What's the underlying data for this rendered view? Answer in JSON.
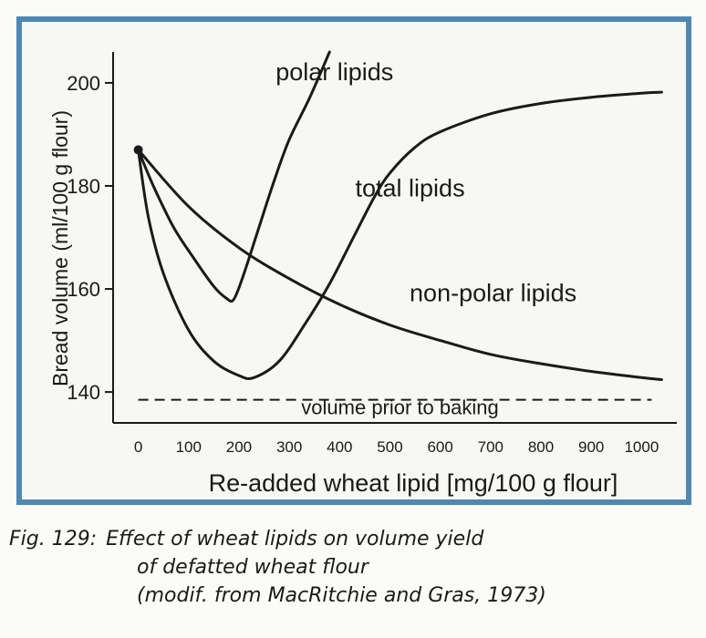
{
  "chart_data": {
    "type": "line",
    "xlabel": "Re-added wheat lipid [mg/100 g flour]",
    "ylabel": "Bread volume (ml/100 g flour)",
    "xlim": [
      -50,
      1070
    ],
    "ylim": [
      134,
      206
    ],
    "xticks": [
      0,
      100,
      200,
      300,
      400,
      500,
      600,
      700,
      800,
      900,
      1000
    ],
    "yticks": [
      140,
      160,
      180,
      200
    ],
    "grid": false,
    "series": [
      {
        "name": "polar lipids",
        "x": [
          0,
          30,
          70,
          110,
          150,
          175,
          190,
          210,
          240,
          270,
          300,
          340,
          380
        ],
        "y": [
          187,
          180,
          172,
          166,
          160.5,
          158.2,
          158,
          163,
          172,
          181,
          189,
          197,
          206
        ]
      },
      {
        "name": "total lipids",
        "x": [
          0,
          20,
          50,
          100,
          150,
          200,
          230,
          280,
          330,
          380,
          430,
          470,
          500,
          550,
          600,
          700,
          800,
          900,
          1000,
          1040
        ],
        "y": [
          187,
          174,
          163,
          152,
          146,
          143.2,
          142.8,
          146,
          153,
          161,
          170.5,
          178,
          182.5,
          187.5,
          190.5,
          194,
          196,
          197.2,
          198,
          198.2
        ]
      },
      {
        "name": "non-polar lipids",
        "x": [
          0,
          100,
          200,
          300,
          400,
          500,
          600,
          700,
          800,
          900,
          1000,
          1040
        ],
        "y": [
          187,
          176,
          168,
          162,
          157,
          153,
          150,
          147.3,
          145.5,
          144,
          142.8,
          142.4
        ]
      },
      {
        "name": "volume prior to baking",
        "x": [
          0,
          1020
        ],
        "y": [
          138.5,
          138.5
        ],
        "dashed": true
      }
    ],
    "annotations": [
      {
        "text": "polar lipids",
        "x": 390,
        "y": 200.5
      },
      {
        "text": "total lipids",
        "x": 540,
        "y": 178
      },
      {
        "text": "non-polar lipids",
        "x": 705,
        "y": 157.6
      },
      {
        "text": "volume prior to baking",
        "x": 520,
        "y": 135.7
      }
    ],
    "colors": {
      "frame": "#4f88b3",
      "line": "#1a1a1a"
    }
  },
  "caption": {
    "fig_label": "Fig. 129:",
    "line1": "Effect of wheat lipids on volume yield",
    "line2": "of defatted wheat flour",
    "line3": "(modif. from MacRitchie and Gras, 1973)"
  }
}
